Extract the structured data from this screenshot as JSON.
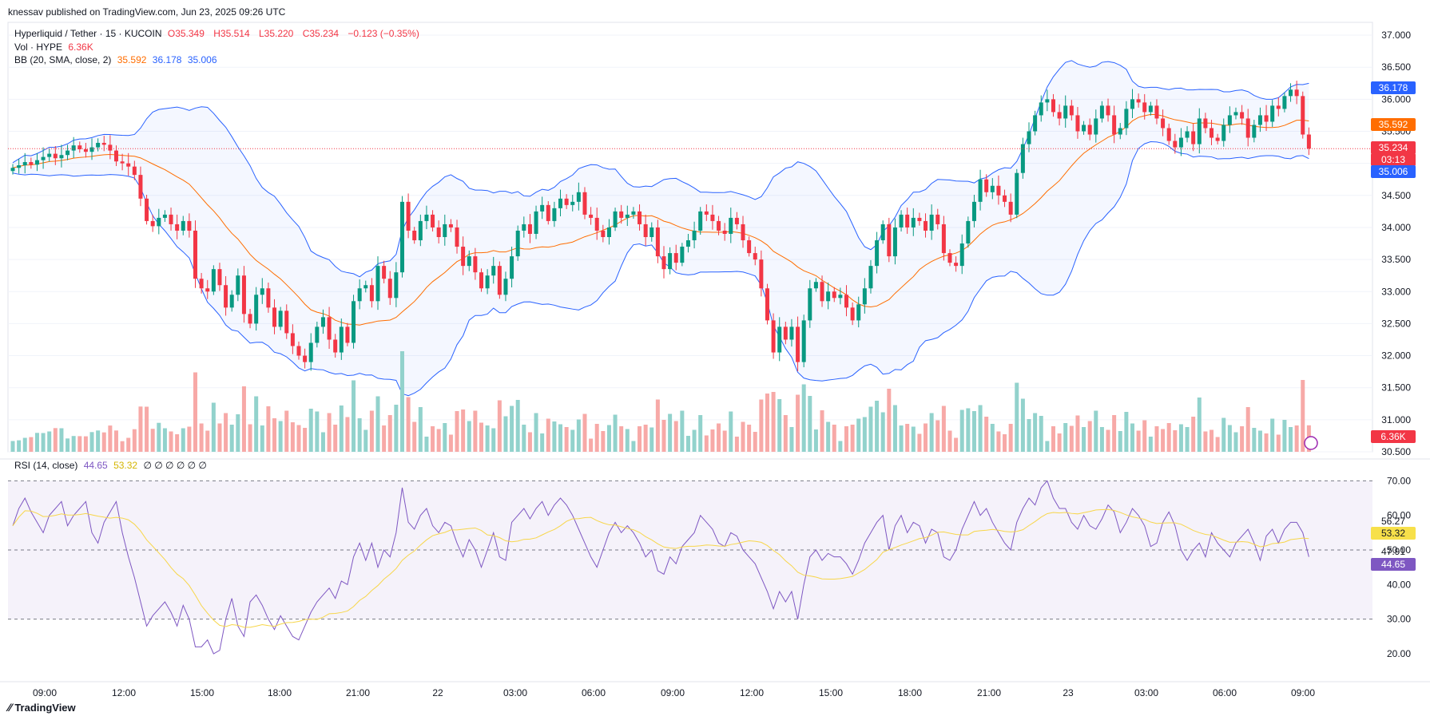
{
  "header": {
    "published": "knessav published on TradingView.com, Jun 23, 2025 09:26 UTC",
    "symbol": "Hyperliquid / Tether · 15 · KUCOIN",
    "o_label": "O",
    "o": "35.349",
    "h_label": "H",
    "h": "35.514",
    "l_label": "L",
    "l": "35.220",
    "c_label": "C",
    "c": "35.234",
    "change": "−0.123 (−0.35%)",
    "vol_label": "Vol · HYPE",
    "vol": "6.36K",
    "bb_label": "BB (20, SMA, close, 2)",
    "bb_basis": "35.592",
    "bb_upper": "36.178",
    "bb_lower": "35.006",
    "rsi_label": "RSI (14, close)",
    "rsi_value": "44.65",
    "rsi_ma": "53.32",
    "rsi_extra": "∅ ∅ ∅ ∅ ∅ ∅"
  },
  "brand": "TradingView",
  "colors": {
    "up": "#089981",
    "down": "#f23645",
    "bb": "#2962ff",
    "basis": "#ff6d00",
    "rsi": "#7e57c2",
    "rsi_ma": "#f7d64a"
  },
  "tags": {
    "bb_upper": "36.178",
    "bb_basis": "35.592",
    "price": "35.234",
    "countdown": "03:13",
    "bb_lower": "35.006",
    "vol": "6.36K",
    "rsi_ma": "53.32",
    "rsi": "44.65",
    "rsi_a": "56.27",
    "rsi_b": "47.91"
  },
  "chart_data": {
    "type": "candlestick",
    "price_axis": {
      "ticks": [
        "37.000",
        "36.500",
        "36.000",
        "35.500",
        "35.000",
        "34.500",
        "34.000",
        "33.500",
        "33.000",
        "32.500",
        "32.000",
        "31.500",
        "31.000",
        "30.500"
      ],
      "ylim": [
        30.5,
        37.2
      ]
    },
    "rsi_axis": {
      "ticks": [
        "70.00",
        "60.00",
        "50.00",
        "40.00",
        "30.00",
        "20.00"
      ],
      "ylim": [
        14,
        74
      ],
      "bands": [
        30,
        70
      ],
      "mid": 50
    },
    "x_labels": [
      "09:00",
      "12:00",
      "15:00",
      "18:00",
      "21:00",
      "22",
      "03:00",
      "06:00",
      "09:00",
      "12:00",
      "15:00",
      "18:00",
      "21:00",
      "23",
      "03:00",
      "06:00",
      "09:00"
    ],
    "closes": [
      34.93,
      34.97,
      35.02,
      34.98,
      35.05,
      35.1,
      35.15,
      35.08,
      35.13,
      35.2,
      35.28,
      35.22,
      35.18,
      35.25,
      35.32,
      35.29,
      35.2,
      35.03,
      35.0,
      34.95,
      34.82,
      34.45,
      34.1,
      34.02,
      34.15,
      34.2,
      34.05,
      33.95,
      34.1,
      33.95,
      33.2,
      33.05,
      33.0,
      33.35,
      33.1,
      32.75,
      32.95,
      33.25,
      32.65,
      32.5,
      32.95,
      33.05,
      32.75,
      32.45,
      32.7,
      32.35,
      32.15,
      32.0,
      31.9,
      32.2,
      32.45,
      32.6,
      32.25,
      32.05,
      32.45,
      32.2,
      32.85,
      33.05,
      33.1,
      32.85,
      33.4,
      33.2,
      32.9,
      33.3,
      34.4,
      33.95,
      33.8,
      34.1,
      34.2,
      34.0,
      33.85,
      34.05,
      34.0,
      33.7,
      33.4,
      33.55,
      33.3,
      33.05,
      33.25,
      33.4,
      32.95,
      33.2,
      33.55,
      33.95,
      34.05,
      33.9,
      34.25,
      34.35,
      34.1,
      34.3,
      34.45,
      34.35,
      34.4,
      34.55,
      34.2,
      34.15,
      33.95,
      33.85,
      34.0,
      34.25,
      34.15,
      34.2,
      34.25,
      34.05,
      33.85,
      34.0,
      33.55,
      33.35,
      33.6,
      33.45,
      33.7,
      33.8,
      33.95,
      34.25,
      34.2,
      34.1,
      33.95,
      33.9,
      34.15,
      34.05,
      33.8,
      33.6,
      33.5,
      33.05,
      32.55,
      32.05,
      32.45,
      32.25,
      32.45,
      31.9,
      32.55,
      33.05,
      33.15,
      32.85,
      33.0,
      32.9,
      32.95,
      32.75,
      32.55,
      32.8,
      33.05,
      33.4,
      33.8,
      34.05,
      33.55,
      34.0,
      34.2,
      34.0,
      34.15,
      34.1,
      33.95,
      34.2,
      34.05,
      33.6,
      33.45,
      33.4,
      33.75,
      34.1,
      34.4,
      34.75,
      34.55,
      34.65,
      34.5,
      34.4,
      34.2,
      34.85,
      35.3,
      35.5,
      35.75,
      35.95,
      36.0,
      35.8,
      35.7,
      35.9,
      35.75,
      35.5,
      35.6,
      35.45,
      35.7,
      35.9,
      35.75,
      35.45,
      35.55,
      35.85,
      36.0,
      35.95,
      35.8,
      35.9,
      35.7,
      35.55,
      35.35,
      35.25,
      35.4,
      35.5,
      35.3,
      35.7,
      35.55,
      35.4,
      35.35,
      35.6,
      35.75,
      35.8,
      35.7,
      35.4,
      35.6,
      35.75,
      35.65,
      35.9,
      35.85,
      36.05,
      36.15,
      36.05,
      35.45,
      35.23
    ],
    "rsi": [
      57,
      62,
      65,
      61,
      58,
      55,
      60,
      62,
      64,
      57,
      60,
      62,
      64,
      55,
      52,
      58,
      61,
      64,
      55,
      48,
      42,
      35,
      28,
      31,
      33,
      35,
      32,
      28,
      34,
      30,
      22,
      22,
      24,
      20,
      21,
      30,
      36,
      28,
      25,
      35,
      37,
      34,
      30,
      27,
      31,
      28,
      25,
      24,
      28,
      32,
      35,
      37,
      39,
      36,
      41,
      40,
      48,
      52,
      47,
      52,
      45,
      50,
      48,
      55,
      68,
      58,
      56,
      60,
      62,
      57,
      55,
      58,
      57,
      52,
      48,
      53,
      50,
      45,
      50,
      55,
      48,
      47,
      58,
      60,
      62,
      59,
      62,
      64,
      60,
      63,
      65,
      63,
      60,
      56,
      52,
      48,
      45,
      50,
      55,
      58,
      55,
      57,
      55,
      52,
      48,
      50,
      44,
      43,
      48,
      46,
      51,
      53,
      55,
      60,
      58,
      56,
      52,
      51,
      55,
      54,
      50,
      48,
      46,
      42,
      38,
      33,
      38,
      35,
      38,
      30,
      40,
      48,
      50,
      47,
      49,
      48,
      48,
      46,
      43,
      47,
      52,
      55,
      58,
      60,
      50,
      57,
      60,
      55,
      58,
      57,
      52,
      56,
      55,
      48,
      47,
      50,
      56,
      60,
      64,
      60,
      62,
      58,
      55,
      52,
      50,
      58,
      62,
      65,
      63,
      68,
      70,
      65,
      62,
      62,
      58,
      56,
      60,
      57,
      56,
      59,
      63,
      61,
      55,
      58,
      62,
      60,
      57,
      51,
      52,
      58,
      61,
      57,
      50,
      47,
      50,
      52,
      48,
      55,
      52,
      50,
      48,
      52,
      54,
      56,
      52,
      47,
      54,
      56,
      52,
      56,
      58,
      58,
      55,
      48,
      53,
      56,
      54,
      58,
      60,
      61,
      58,
      44,
      43
    ],
    "rsi_ma_approx": "SMA(14) of RSI"
  }
}
